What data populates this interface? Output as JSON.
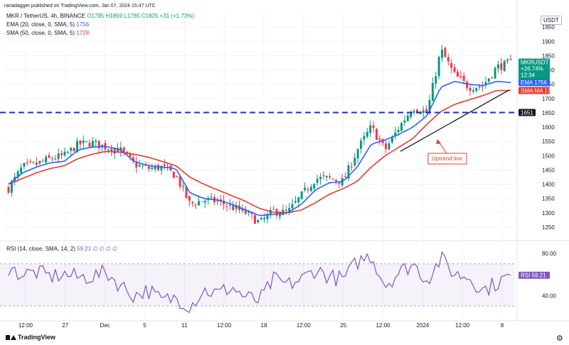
{
  "header": {
    "credit": "ranadagger published on TradingView.com, Jan 07, 2024 15:47 UTC",
    "symbol": "MKR / TetherUS, 4h, BINANCE",
    "ohlc": "O1795 H1859 L1785 C1825 +31 (+1.73%)",
    "ema_label": "EMA (20, close, 0, SMA, 5)",
    "ema_value": "1756",
    "sma_label": "SMA (50, close, 0, SMA, 5)",
    "sma_value": "1728",
    "rsi_label": "RSI (14, close, SMA, 14, 2)",
    "rsi_values": "59.21 ∅ ∅ ∅ ∅"
  },
  "footer": {
    "brand": "TradingView",
    "gear_icon": "gear-icon"
  },
  "currency": "USDT",
  "colors": {
    "up": "#089981",
    "down": "#f23645",
    "ema": "#2962ff",
    "sma": "#e53935",
    "rsi": "#7e57c2",
    "support": "#1f2fb8",
    "callout": "#e53935"
  },
  "chart_data": [
    {
      "type": "candlestick",
      "ylim": [
        1210,
        2000
      ],
      "yticks": [
        1250,
        1300,
        1350,
        1400,
        1450,
        1500,
        1550,
        1600,
        1650,
        1700,
        1750,
        1800,
        1850,
        1900,
        1950
      ],
      "xticks": [
        "12:00",
        "27",
        "Dec",
        "5",
        "11",
        "12:00",
        "18",
        "12:00",
        "25",
        "12:00",
        "2024",
        "12:00",
        "8"
      ],
      "anchors": [
        {
          "c": 1385,
          "e": 1400,
          "s": 1400
        },
        {
          "c": 1460,
          "e": 1440,
          "s": 1420
        },
        {
          "c": 1470,
          "e": 1460,
          "s": 1440
        },
        {
          "c": 1490,
          "e": 1475,
          "s": 1455
        },
        {
          "c": 1500,
          "e": 1480,
          "s": 1465
        },
        {
          "c": 1540,
          "e": 1520,
          "s": 1490
        },
        {
          "c": 1545,
          "e": 1530,
          "s": 1505
        },
        {
          "c": 1530,
          "e": 1532,
          "s": 1515
        },
        {
          "c": 1520,
          "e": 1522,
          "s": 1512
        },
        {
          "c": 1470,
          "e": 1480,
          "s": 1505
        },
        {
          "c": 1455,
          "e": 1465,
          "s": 1495
        },
        {
          "c": 1460,
          "e": 1460,
          "s": 1480
        },
        {
          "c": 1430,
          "e": 1455,
          "s": 1465
        },
        {
          "c": 1330,
          "e": 1370,
          "s": 1425
        },
        {
          "c": 1345,
          "e": 1350,
          "s": 1400
        },
        {
          "c": 1340,
          "e": 1345,
          "s": 1380
        },
        {
          "c": 1320,
          "e": 1330,
          "s": 1360
        },
        {
          "c": 1300,
          "e": 1310,
          "s": 1340
        },
        {
          "c": 1265,
          "e": 1290,
          "s": 1315
        },
        {
          "c": 1305,
          "e": 1295,
          "s": 1302
        },
        {
          "c": 1300,
          "e": 1300,
          "s": 1300
        },
        {
          "c": 1360,
          "e": 1330,
          "s": 1310
        },
        {
          "c": 1420,
          "e": 1380,
          "s": 1335
        },
        {
          "c": 1420,
          "e": 1405,
          "s": 1365
        },
        {
          "c": 1410,
          "e": 1410,
          "s": 1385
        },
        {
          "c": 1520,
          "e": 1460,
          "s": 1410
        },
        {
          "c": 1600,
          "e": 1540,
          "s": 1460
        },
        {
          "c": 1520,
          "e": 1555,
          "s": 1500
        },
        {
          "c": 1600,
          "e": 1575,
          "s": 1530
        },
        {
          "c": 1670,
          "e": 1600,
          "s": 1560
        },
        {
          "c": 1650,
          "e": 1640,
          "s": 1610
        },
        {
          "c": 1870,
          "e": 1740,
          "s": 1655
        },
        {
          "c": 1780,
          "e": 1760,
          "s": 1680
        },
        {
          "c": 1740,
          "e": 1750,
          "s": 1695
        },
        {
          "c": 1745,
          "e": 1745,
          "s": 1710
        },
        {
          "c": 1810,
          "e": 1760,
          "s": 1728
        },
        {
          "c": 1825,
          "e": 1756,
          "s": 1728
        }
      ],
      "series": [
        {
          "name": "EMA",
          "value": "1756"
        },
        {
          "name": "SMA:MA",
          "value": "1728"
        }
      ],
      "price_tag": {
        "symbol": "MKRUSDT",
        "price": "1825",
        "change": "+26.74%",
        "countdown": "12:34"
      },
      "support_level": {
        "value": 1651,
        "label": "1651"
      },
      "trendline": {
        "from": 1515,
        "to": 1730
      },
      "annotation": "Uptrend line"
    },
    {
      "type": "line",
      "name": "RSI",
      "ylim": [
        20,
        90
      ],
      "yticks": [
        40,
        80
      ],
      "band": [
        30,
        70
      ],
      "current": "59.21",
      "anchors": [
        65,
        60,
        62,
        58,
        60,
        57,
        58,
        62,
        50,
        40,
        45,
        35,
        38,
        30,
        45,
        42,
        48,
        38,
        35,
        55,
        50,
        55,
        65,
        58,
        55,
        72,
        78,
        50,
        62,
        70,
        55,
        75,
        60,
        58,
        45,
        52,
        59
      ]
    }
  ]
}
